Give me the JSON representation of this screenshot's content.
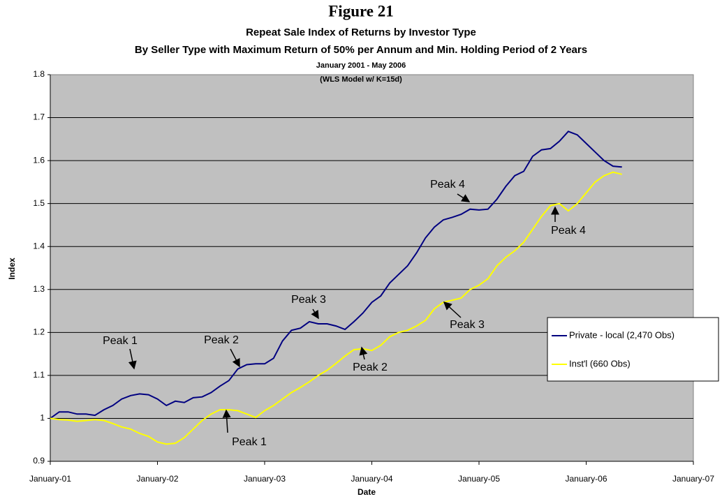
{
  "chart_data": {
    "type": "line",
    "title": "Figure 21",
    "subtitle": [
      "Repeat Sale Index of Returns by Investor Type",
      "By Seller Type with Maximum Return of 50% per Annum and Min. Holding Period of 2 Years",
      "January 2001 - May 2006"
    ],
    "note": "(WLS Model w/ K=15d)",
    "xlabel": "Date",
    "ylabel": "Index",
    "x": [
      "2001-01",
      "2001-02",
      "2001-03",
      "2001-04",
      "2001-05",
      "2001-06",
      "2001-07",
      "2001-08",
      "2001-09",
      "2001-10",
      "2001-11",
      "2001-12",
      "2002-01",
      "2002-02",
      "2002-03",
      "2002-04",
      "2002-05",
      "2002-06",
      "2002-07",
      "2002-08",
      "2002-09",
      "2002-10",
      "2002-11",
      "2002-12",
      "2003-01",
      "2003-02",
      "2003-03",
      "2003-04",
      "2003-05",
      "2003-06",
      "2003-07",
      "2003-08",
      "2003-09",
      "2003-10",
      "2003-11",
      "2003-12",
      "2004-01",
      "2004-02",
      "2004-03",
      "2004-04",
      "2004-05",
      "2004-06",
      "2004-07",
      "2004-08",
      "2004-09",
      "2004-10",
      "2004-11",
      "2004-12",
      "2005-01",
      "2005-02",
      "2005-03",
      "2005-04",
      "2005-05",
      "2005-06",
      "2005-07",
      "2005-08",
      "2005-09",
      "2005-10",
      "2005-11",
      "2005-12",
      "2006-01",
      "2006-02",
      "2006-03",
      "2006-04",
      "2006-05"
    ],
    "series": [
      {
        "name": "Private - local (2,470 Obs)",
        "color": "#000080",
        "values": [
          1.0,
          1.015,
          1.015,
          1.01,
          1.01,
          1.007,
          1.02,
          1.03,
          1.045,
          1.053,
          1.057,
          1.055,
          1.045,
          1.03,
          1.04,
          1.037,
          1.048,
          1.05,
          1.06,
          1.075,
          1.088,
          1.115,
          1.125,
          1.127,
          1.127,
          1.14,
          1.18,
          1.205,
          1.21,
          1.225,
          1.22,
          1.22,
          1.215,
          1.207,
          1.225,
          1.245,
          1.27,
          1.285,
          1.315,
          1.335,
          1.355,
          1.385,
          1.42,
          1.445,
          1.462,
          1.468,
          1.475,
          1.487,
          1.485,
          1.487,
          1.51,
          1.54,
          1.565,
          1.575,
          1.61,
          1.625,
          1.628,
          1.645,
          1.668,
          1.66,
          1.64,
          1.62,
          1.6,
          1.587,
          1.585
        ]
      },
      {
        "name": "Inst'l (660 Obs)",
        "color": "#ffff00",
        "values": [
          1.0,
          0.997,
          0.996,
          0.993,
          0.995,
          0.997,
          0.995,
          0.988,
          0.98,
          0.975,
          0.965,
          0.958,
          0.945,
          0.94,
          0.942,
          0.955,
          0.975,
          0.995,
          1.01,
          1.02,
          1.02,
          1.018,
          1.01,
          1.002,
          1.018,
          1.03,
          1.045,
          1.06,
          1.072,
          1.085,
          1.1,
          1.112,
          1.128,
          1.145,
          1.16,
          1.162,
          1.158,
          1.17,
          1.19,
          1.2,
          1.205,
          1.215,
          1.228,
          1.255,
          1.27,
          1.275,
          1.28,
          1.3,
          1.31,
          1.325,
          1.355,
          1.375,
          1.39,
          1.41,
          1.44,
          1.47,
          1.495,
          1.5,
          1.483,
          1.5,
          1.525,
          1.55,
          1.565,
          1.573,
          1.568
        ]
      }
    ],
    "xlim": [
      "2001-01",
      "2007-01"
    ],
    "xticks": [
      {
        "value": "2001-01",
        "label": "January-01"
      },
      {
        "value": "2002-01",
        "label": "January-02"
      },
      {
        "value": "2003-01",
        "label": "January-03"
      },
      {
        "value": "2004-01",
        "label": "January-04"
      },
      {
        "value": "2005-01",
        "label": "January-05"
      },
      {
        "value": "2006-01",
        "label": "January-06"
      },
      {
        "value": "2007-01",
        "label": "January-07"
      }
    ],
    "ylim": [
      0.9,
      1.8
    ],
    "yticks": [
      0.9,
      1,
      1.1,
      1.2,
      1.3,
      1.4,
      1.5,
      1.6,
      1.7,
      1.8
    ],
    "grid": true,
    "legend": "right",
    "annotations": [
      "Peak 1",
      "Peak 1",
      "Peak 2",
      "Peak 2",
      "Peak 3",
      "Peak 3",
      "Peak 4",
      "Peak 4"
    ]
  }
}
